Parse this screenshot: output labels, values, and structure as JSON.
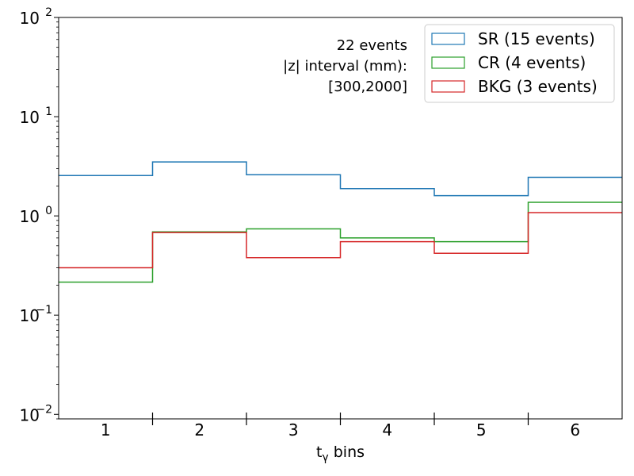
{
  "chart_data": {
    "type": "step",
    "xlabel_main": "t",
    "xlabel_sub": "γ",
    "xlabel_rest": " bins",
    "ylabel": "",
    "yscale": "log",
    "ylim": [
      0.009,
      100
    ],
    "xlim": [
      0.5,
      6.5
    ],
    "categories": [
      "1",
      "2",
      "3",
      "4",
      "5",
      "6"
    ],
    "yticks": [
      {
        "value": 0.01,
        "base": "10",
        "exp": "−2"
      },
      {
        "value": 0.1,
        "base": "10",
        "exp": "−1"
      },
      {
        "value": 1,
        "base": "10",
        "exp": "0"
      },
      {
        "value": 10,
        "base": "10",
        "exp": "1"
      },
      {
        "value": 100,
        "base": "10",
        "exp": "2"
      }
    ],
    "annotation": [
      "22 events",
      "|z| interval (mm):",
      "[300,2000]"
    ],
    "legend_position": "top-right",
    "series": [
      {
        "name": "SR (15 events)",
        "color": "#1f77b4",
        "values": [
          2.55,
          3.5,
          2.6,
          1.88,
          1.6,
          2.45
        ]
      },
      {
        "name": "CR (4 events)",
        "color": "#2ca02c",
        "values": [
          0.215,
          0.69,
          0.74,
          0.6,
          0.55,
          1.37
        ]
      },
      {
        "name": "BKG (3 events)",
        "color": "#d62728",
        "values": [
          0.3,
          0.68,
          0.38,
          0.55,
          0.42,
          1.08
        ]
      }
    ]
  }
}
